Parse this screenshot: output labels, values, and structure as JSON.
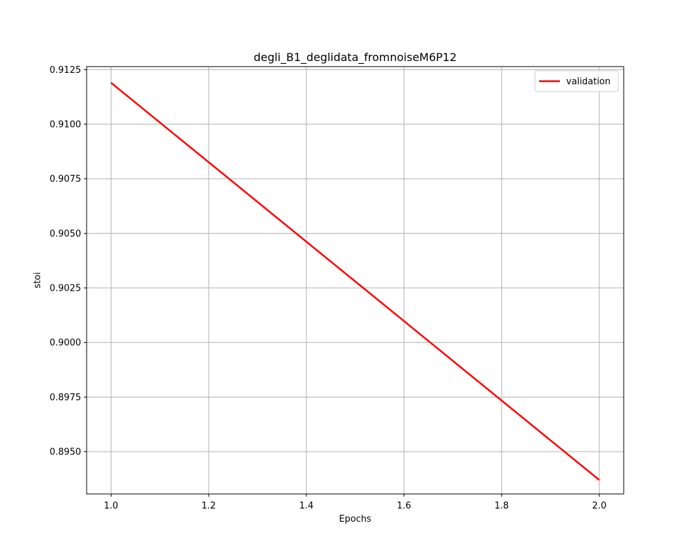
{
  "chart_data": {
    "type": "line",
    "title": "degli_B1_deglidata_fromnoiseM6P12",
    "xlabel": "Epochs",
    "ylabel": "stoi",
    "xlim": [
      0.95,
      2.05
    ],
    "ylim": [
      0.89306,
      0.91264
    ],
    "xticks": [
      1.0,
      1.2,
      1.4,
      1.6,
      1.8,
      2.0
    ],
    "xtick_labels": [
      "1.0",
      "1.2",
      "1.4",
      "1.6",
      "1.8",
      "2.0"
    ],
    "yticks": [
      0.895,
      0.8975,
      0.9,
      0.9025,
      0.905,
      0.9075,
      0.91,
      0.9125
    ],
    "ytick_labels": [
      "0.8950",
      "0.8975",
      "0.9000",
      "0.9025",
      "0.9050",
      "0.9075",
      "0.9100",
      "0.9125"
    ],
    "grid": true,
    "legend_position": "top-right",
    "series": [
      {
        "name": "validation",
        "color": "#ff0000",
        "x": [
          1.0,
          2.0
        ],
        "y": [
          0.9119,
          0.8937
        ]
      }
    ]
  }
}
